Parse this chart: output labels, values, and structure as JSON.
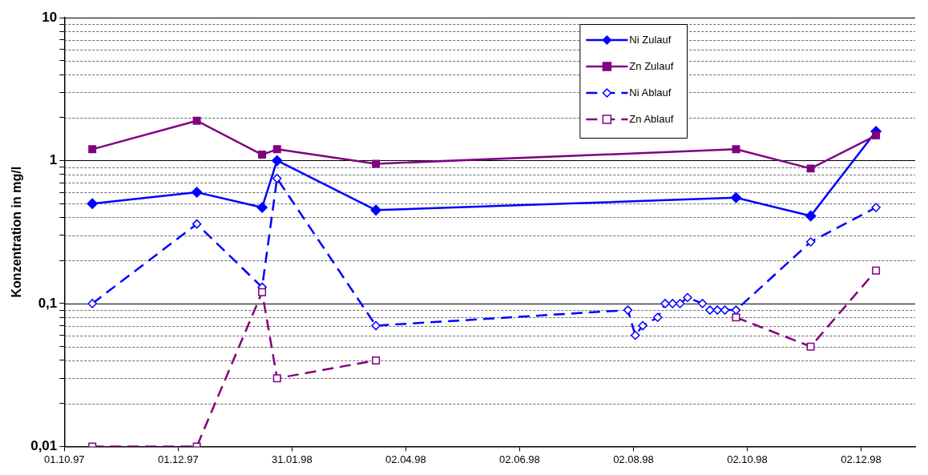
{
  "chart_data": {
    "type": "line",
    "ylabel": "Konzentration in mg/l",
    "log": "y",
    "grid": "y",
    "legend": "top right",
    "xlim": [
      "1997-10-01",
      "1998-12-31"
    ],
    "xticks": [
      {
        "value": "1997-10-01",
        "label": "01.10.97"
      },
      {
        "value": "1997-12-01",
        "label": "01.12.97"
      },
      {
        "value": "1998-01-31",
        "label": "31.01.98"
      },
      {
        "value": "1998-04-02",
        "label": "02.04.98"
      },
      {
        "value": "1998-06-02",
        "label": "02.06.98"
      },
      {
        "value": "1998-08-02",
        "label": "02.08.98"
      },
      {
        "value": "1998-10-02",
        "label": "02.10.98"
      },
      {
        "value": "1998-12-02",
        "label": "02.12.98"
      }
    ],
    "ylim": [
      0.01,
      10
    ],
    "yticks": [
      {
        "value": 0.01,
        "label": "0,01"
      },
      {
        "value": 0.02,
        "label": null
      },
      {
        "value": 0.03,
        "label": null
      },
      {
        "value": 0.04,
        "label": null
      },
      {
        "value": 0.05,
        "label": null
      },
      {
        "value": 0.06,
        "label": null
      },
      {
        "value": 0.07,
        "label": null
      },
      {
        "value": 0.08,
        "label": null
      },
      {
        "value": 0.09,
        "label": null
      },
      {
        "value": 0.1,
        "label": "0,1"
      },
      {
        "value": 0.2,
        "label": null
      },
      {
        "value": 0.3,
        "label": null
      },
      {
        "value": 0.4,
        "label": null
      },
      {
        "value": 0.5,
        "label": null
      },
      {
        "value": 0.6,
        "label": null
      },
      {
        "value": 0.7,
        "label": null
      },
      {
        "value": 0.8,
        "label": null
      },
      {
        "value": 0.9,
        "label": null
      },
      1,
      {
        "value": 2,
        "label": null
      },
      {
        "value": 3,
        "label": null
      },
      {
        "value": 4,
        "label": null
      },
      {
        "value": 5,
        "label": null
      },
      {
        "value": 6,
        "label": null
      },
      {
        "value": 7,
        "label": null
      },
      {
        "value": 8,
        "label": null
      },
      {
        "value": 9,
        "label": null
      },
      10
    ],
    "series": [
      {
        "name": "Ni Zulauf",
        "color": "#0000ff",
        "marker": "diamond",
        "line_style": "solid",
        "x": [
          "1997-10-16",
          "1997-12-11",
          "1998-01-15",
          "1998-01-23",
          "1998-03-17",
          "1998-09-26",
          "1998-11-05",
          "1998-12-10"
        ],
        "values": [
          0.5,
          0.6,
          0.47,
          1.0,
          0.45,
          0.55,
          0.41,
          1.6
        ]
      },
      {
        "name": "Zn Zulauf",
        "color": "#800080",
        "marker": "square",
        "line_style": "solid",
        "x": [
          "1997-10-16",
          "1997-12-11",
          "1998-01-15",
          "1998-01-23",
          "1998-03-17",
          "1998-09-26",
          "1998-11-05",
          "1998-12-10"
        ],
        "values": [
          1.2,
          1.9,
          1.1,
          1.2,
          0.95,
          1.2,
          0.88,
          1.5
        ]
      },
      {
        "name": "Ni Ablauf",
        "color": "#0000ff",
        "marker": "diamond",
        "line_style": "dashed",
        "x": [
          "1997-10-16",
          "1997-12-11",
          "1998-01-15",
          "1998-01-23",
          "1998-03-17",
          "1998-07-30",
          "1998-08-03",
          "1998-08-07",
          "1998-08-15",
          "1998-08-19",
          "1998-08-23",
          "1998-08-27",
          "1998-08-31",
          "1998-09-08",
          "1998-09-12",
          "1998-09-16",
          "1998-09-20",
          "1998-09-26",
          "1998-11-05",
          "1998-12-10"
        ],
        "values": [
          0.1,
          0.36,
          0.13,
          0.75,
          0.07,
          0.09,
          0.06,
          0.07,
          0.08,
          0.1,
          0.1,
          0.1,
          0.11,
          0.1,
          0.09,
          0.09,
          0.09,
          0.09,
          0.27,
          0.47
        ]
      },
      {
        "name": "Zn Ablauf",
        "color": "#800080",
        "marker": "square",
        "line_style": "dashed",
        "x": [
          "1997-10-16",
          "1997-12-11",
          "1998-01-15",
          "1998-01-23",
          "1998-03-17",
          "1998-07-30",
          "1998-09-26",
          "1998-11-05",
          "1998-12-10"
        ],
        "values": [
          0.01,
          0.01,
          0.12,
          0.03,
          0.04,
          null,
          0.08,
          0.05,
          0.17
        ]
      }
    ]
  }
}
